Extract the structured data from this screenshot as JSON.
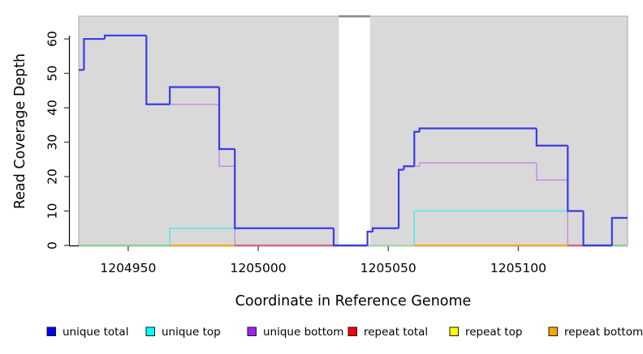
{
  "chart_data": {
    "type": "line",
    "subtype": "step-coverage-plot",
    "title": "",
    "xlabel": "Coordinate in Reference Genome",
    "ylabel": "Read Coverage Depth",
    "x_range": [
      1204931,
      1205142
    ],
    "y_range": [
      0,
      66.6
    ],
    "x_ticks": [
      1204950,
      1205000,
      1205050,
      1205100
    ],
    "y_ticks": [
      0,
      10,
      20,
      30,
      40,
      50,
      60
    ],
    "grid": "off",
    "panel_bg": "#D9D9D9",
    "panel_border": "#B3B3B3",
    "axis_color": "#000000",
    "gap_region": {
      "x_start": 1205031,
      "x_end": 1205043,
      "fill": "#FFFFFF",
      "top_edge_color": "#8C8C8C"
    },
    "series": [
      {
        "name": "unique bottom",
        "legend_color": "#A020F0",
        "line_color": "#C38BE3",
        "width": 1.4,
        "draw_zero_runs": false,
        "end_x": 1205142,
        "steps": [
          [
            1204957,
            41
          ],
          [
            1204985,
            23
          ],
          [
            1204991,
            0
          ],
          [
            1205042,
            4
          ],
          [
            1205044,
            5
          ],
          [
            1205054,
            22
          ],
          [
            1205056,
            23
          ],
          [
            1205062,
            24
          ],
          [
            1205107,
            19
          ],
          [
            1205119,
            0
          ]
        ]
      },
      {
        "name": "unique top",
        "legend_color": "#00FFFF",
        "line_color": "#55E7E7",
        "width": 1.5,
        "draw_zero_runs": false,
        "end_x": 1205142,
        "steps": [
          [
            1204931,
            0
          ],
          [
            1204966,
            5
          ],
          [
            1205029,
            0
          ],
          [
            1205060,
            10
          ],
          [
            1205125,
            0
          ]
        ]
      },
      {
        "name": "unique total",
        "legend_color": "#0000FF",
        "line_color": "#3B3BE8",
        "width": 2.2,
        "draw_zero_runs": true,
        "end_x": 1205142,
        "steps": [
          [
            1204931,
            51
          ],
          [
            1204933,
            60
          ],
          [
            1204941,
            61
          ],
          [
            1204957,
            41
          ],
          [
            1204966,
            46
          ],
          [
            1204985,
            28
          ],
          [
            1204991,
            5
          ],
          [
            1205029,
            0
          ],
          [
            1205042,
            4
          ],
          [
            1205044,
            5
          ],
          [
            1205054,
            22
          ],
          [
            1205056,
            23
          ],
          [
            1205060,
            33
          ],
          [
            1205062,
            34
          ],
          [
            1205107,
            29
          ],
          [
            1205119,
            10
          ],
          [
            1205125,
            0
          ],
          [
            1205136,
            8
          ]
        ]
      },
      {
        "name": "repeat total",
        "legend_color": "#FF0000",
        "line_color": "#E0607F",
        "width": 2,
        "draw_zero_runs": false,
        "end_x": 1205142,
        "steps": [
          [
            1204931,
            0
          ]
        ]
      },
      {
        "name": "repeat top",
        "legend_color": "#FFFF00",
        "line_color": "#FFFF00",
        "width": 2,
        "draw_zero_runs": false,
        "end_x": 1205142,
        "steps": [
          [
            1204931,
            0
          ]
        ]
      },
      {
        "name": "repeat bottom",
        "legend_color": "#FFA500",
        "line_color": "#FFA51E",
        "width": 2,
        "draw_zero_runs": false,
        "end_x": 1205142,
        "steps": [
          [
            1204931,
            0
          ]
        ]
      }
    ],
    "baseline_blend_segments": [
      {
        "x_start": 1204931,
        "x_end": 1204966,
        "color": "#8ECF8E"
      },
      {
        "x_start": 1204966,
        "x_end": 1204991,
        "color": "#FFA51E"
      },
      {
        "x_start": 1204991,
        "x_end": 1205029,
        "color": "#E0607F"
      },
      {
        "x_start": 1205029,
        "x_end": 1205042,
        "color": "#3B3BE8"
      },
      {
        "x_start": 1205042,
        "x_end": 1205060,
        "color": "#A9D8AC"
      },
      {
        "x_start": 1205060,
        "x_end": 1205119,
        "color": "#FFA51E"
      },
      {
        "x_start": 1205119,
        "x_end": 1205125,
        "color": "#E0607F"
      },
      {
        "x_start": 1205125,
        "x_end": 1205136,
        "color": "#3B3BE8"
      },
      {
        "x_start": 1205136,
        "x_end": 1205142,
        "color": "#8ECF8E"
      }
    ],
    "legend_position": "bottom",
    "legend": [
      {
        "label": "unique total",
        "color": "#0000FF"
      },
      {
        "label": "unique top",
        "color": "#00FFFF"
      },
      {
        "label": "unique bottom",
        "color": "#A020F0"
      },
      {
        "label": "repeat total",
        "color": "#FF0000"
      },
      {
        "label": "repeat top",
        "color": "#FFFF00"
      },
      {
        "label": "repeat bottom",
        "color": "#FFA500"
      }
    ]
  }
}
